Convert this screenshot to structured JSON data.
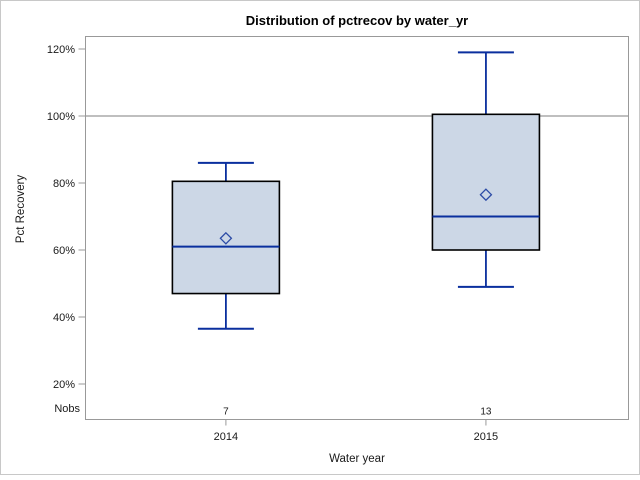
{
  "window": {
    "background": "#ffffff",
    "border_color": "#c8c8c8"
  },
  "chart_data": {
    "type": "box",
    "title": "Distribution of pctrecov by water_yr",
    "xlabel": "Water year",
    "ylabel": "Pct Recovery",
    "nobs_header": "Nobs",
    "y_axis": {
      "min": 20,
      "max": 120,
      "tick_values": [
        120,
        100,
        80,
        60,
        40,
        20
      ],
      "tick_labels": [
        "120%",
        "100%",
        "80%",
        "60%",
        "40%",
        "20%"
      ]
    },
    "reference_line_value": 100,
    "grid": false,
    "categories": [
      "2014",
      "2015"
    ],
    "groups": [
      {
        "category": "2014",
        "nobs": "7",
        "whisker_low": 36.5,
        "q1": 47,
        "median": 61,
        "mean": 63.5,
        "q3": 80.5,
        "whisker_high": 86
      },
      {
        "category": "2015",
        "nobs": "13",
        "whisker_low": 49,
        "q1": 60,
        "median": 70,
        "mean": 76.5,
        "q3": 100.5,
        "whisker_high": 119
      }
    ],
    "colors": {
      "box_fill": "#ccd7e6",
      "box_border": "#000000",
      "whisker": "#0a2f9e",
      "median": "#0a2f9e",
      "mean_marker": "#2c4ba6",
      "axis_frame": "#999999",
      "reference_line": "#999999",
      "text": "#1a1a1a"
    }
  }
}
